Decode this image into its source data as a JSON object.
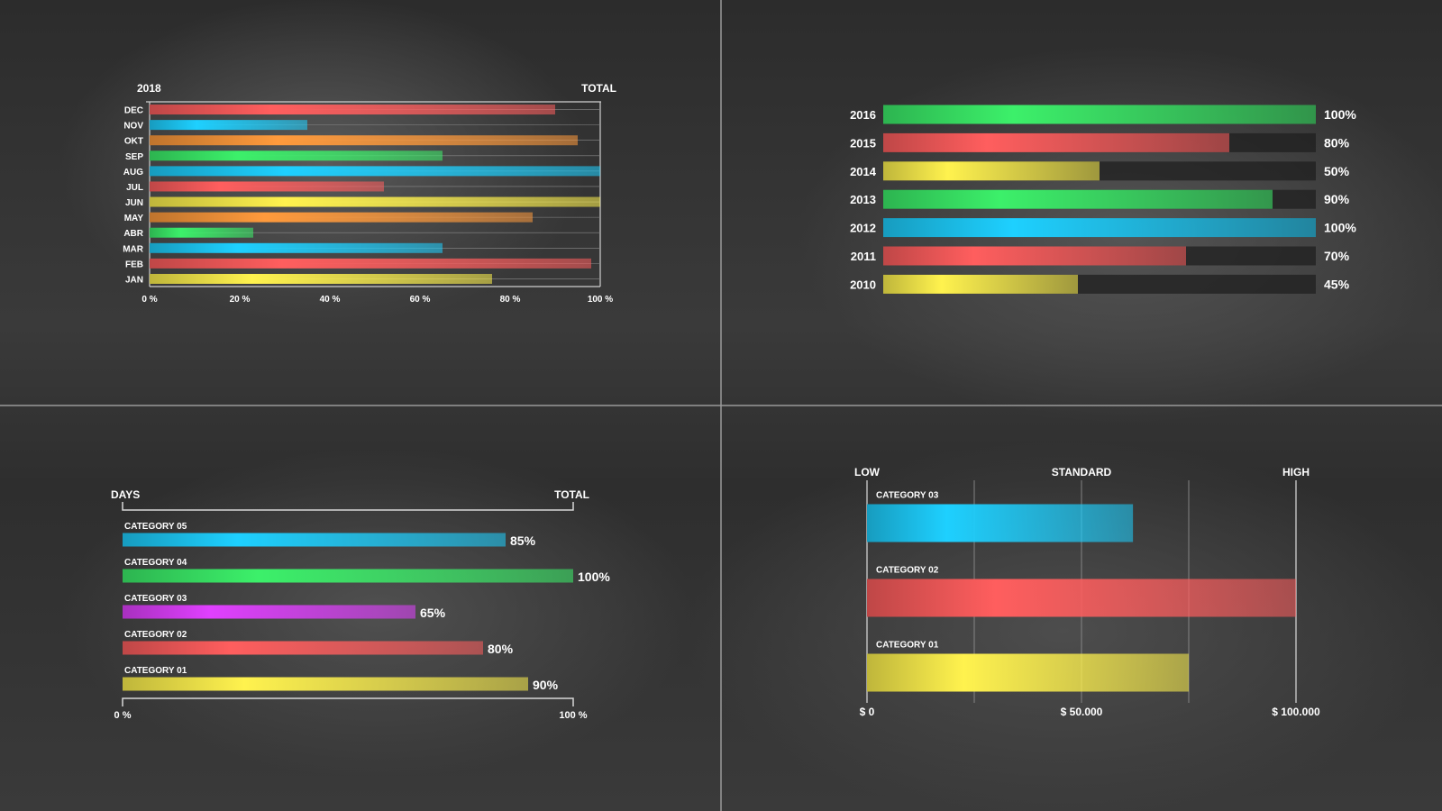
{
  "chart_data": [
    {
      "type": "bar",
      "orientation": "horizontal",
      "corner_left": "2018",
      "corner_right": "TOTAL",
      "categories": [
        "DEC",
        "NOV",
        "OKT",
        "SEP",
        "AUG",
        "JUL",
        "JUN",
        "MAY",
        "ABR",
        "MAR",
        "FEB",
        "JAN"
      ],
      "values": [
        90,
        35,
        95,
        65,
        100,
        52,
        100,
        85,
        23,
        65,
        98,
        76
      ],
      "colors": [
        "#ff5e5e",
        "#1ed0ff",
        "#ff9a3c",
        "#3cf06a",
        "#1ed0ff",
        "#ff5e5e",
        "#fff24e",
        "#ff9a3c",
        "#3cf06a",
        "#1ed0ff",
        "#ff5e5e",
        "#fff24e"
      ],
      "xticks": [
        "0 %",
        "20 %",
        "40 %",
        "60 %",
        "80 %",
        "100 %"
      ],
      "xlim": [
        0,
        100
      ],
      "grid": true
    },
    {
      "type": "bar",
      "orientation": "horizontal",
      "categories": [
        "2016",
        "2015",
        "2014",
        "2013",
        "2012",
        "2011",
        "2010"
      ],
      "values": [
        100,
        80,
        50,
        90,
        100,
        70,
        45
      ],
      "labels": [
        "100%",
        "80%",
        "50%",
        "90%",
        "100%",
        "70%",
        "45%"
      ],
      "colors": [
        "#3cf06a",
        "#ff5e5e",
        "#fff24e",
        "#3cf06a",
        "#1ed0ff",
        "#ff5e5e",
        "#fff24e"
      ],
      "xlim": [
        0,
        100
      ]
    },
    {
      "type": "bar",
      "orientation": "horizontal",
      "corner_left": "DAYS",
      "corner_right": "TOTAL",
      "categories": [
        "CATEGORY 05",
        "CATEGORY 04",
        "CATEGORY 03",
        "CATEGORY 02",
        "CATEGORY 01"
      ],
      "values": [
        85,
        100,
        65,
        80,
        90
      ],
      "labels": [
        "85%",
        "100%",
        "65%",
        "80%",
        "90%"
      ],
      "colors": [
        "#1ed0ff",
        "#3cf06a",
        "#e040ff",
        "#ff5e5e",
        "#fff24e"
      ],
      "xticks": [
        "0 %",
        "100 %"
      ],
      "xlim": [
        0,
        100
      ]
    },
    {
      "type": "bar",
      "orientation": "horizontal",
      "top_labels": [
        "LOW",
        "STANDARD",
        "HIGH"
      ],
      "categories": [
        "CATEGORY 03",
        "CATEGORY 02",
        "CATEGORY 01"
      ],
      "values": [
        62000,
        100000,
        75000
      ],
      "colors": [
        "#1ed0ff",
        "#ff5e5e",
        "#fff24e"
      ],
      "xticks": [
        "$ 0",
        "$ 50.000",
        "$ 100.000"
      ],
      "xlim": [
        0,
        100000
      ],
      "grid": true
    }
  ]
}
